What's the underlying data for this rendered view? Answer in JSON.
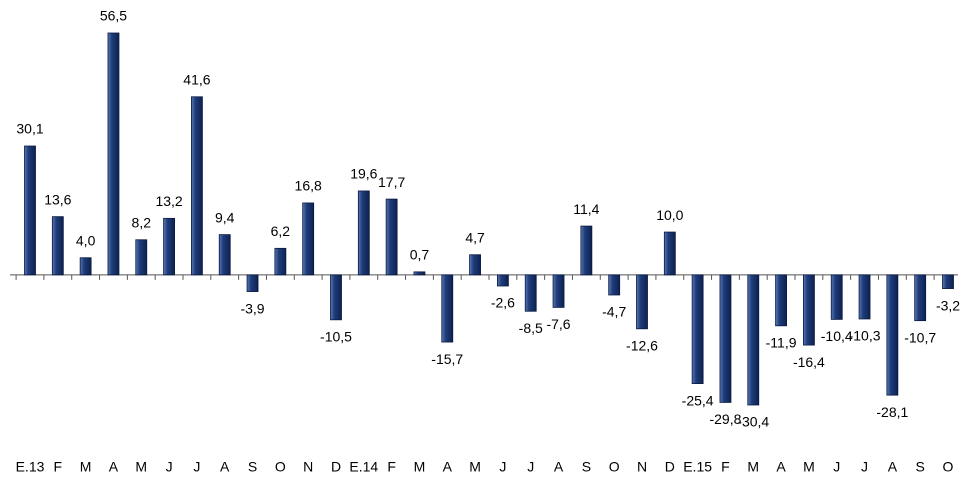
{
  "chart_data": {
    "type": "bar",
    "categories": [
      "E.13",
      "F",
      "M",
      "A",
      "M",
      "J",
      "J",
      "A",
      "S",
      "O",
      "N",
      "D",
      "E.14",
      "F",
      "M",
      "A",
      "M",
      "J",
      "J",
      "A",
      "S",
      "O",
      "N",
      "D",
      "E.15",
      "F",
      "M",
      "A",
      "M",
      "J",
      "J",
      "A",
      "S",
      "O"
    ],
    "values": [
      30.1,
      13.6,
      4.0,
      56.5,
      8.2,
      13.2,
      41.6,
      9.4,
      -3.9,
      6.2,
      16.8,
      -10.5,
      19.6,
      17.7,
      0.7,
      -15.7,
      4.7,
      -2.6,
      -8.5,
      -7.6,
      11.4,
      -4.7,
      -12.6,
      10.0,
      -25.4,
      -29.8,
      -30.4,
      -11.9,
      -16.4,
      -10.4,
      -10.3,
      -28.1,
      -10.7,
      -3.2
    ],
    "value_labels": [
      "30,1",
      "13,6",
      "4,0",
      "56,5",
      "8,2",
      "13,2",
      "41,6",
      "9,4",
      "-3,9",
      "6,2",
      "16,8",
      "-10,5",
      "19,6",
      "17,7",
      "0,7",
      "-15,7",
      "4,7",
      "-2,6",
      "-8,5",
      "-7,6",
      "11,4",
      "-4,7",
      "-12,6",
      "10,0",
      "-25,4",
      "-29,8",
      "-30,4",
      "-11,9",
      "-16,4",
      "-10,4",
      "-10,3",
      "-28,1",
      "-10,7",
      "-3,2"
    ],
    "color": "#1f3d7a"
  }
}
